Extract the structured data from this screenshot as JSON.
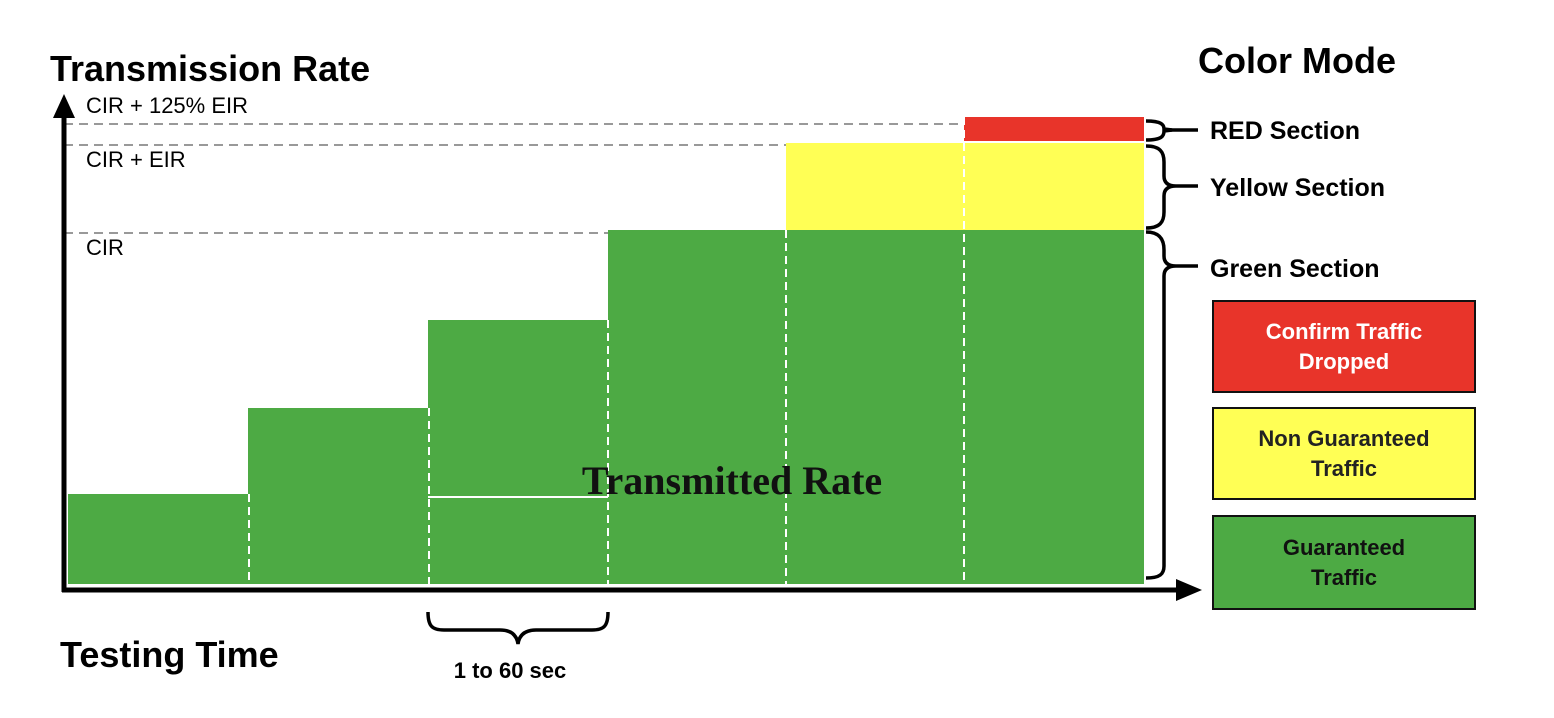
{
  "title": "Transmission Rate",
  "x_axis_title": "Testing Time",
  "right_title": "Color Mode",
  "levels": {
    "cir_125_eir": "CIR + 125% EIR",
    "cir_eir": "CIR + EIR",
    "cir": "CIR"
  },
  "center_label": "Transmitted Rate",
  "step_duration_label": "1 to 60 sec",
  "sections": {
    "red": "RED Section",
    "yellow": "Yellow Section",
    "green": "Green Section"
  },
  "legend": {
    "red": "Confirm Traffic\nDropped",
    "yellow": "Non Guaranteed\nTraffic",
    "green": "Guaranteed\nTraffic"
  },
  "colors": {
    "green": "#4daa44",
    "yellow": "#ffff55",
    "red": "#e8342a",
    "axis": "#000000"
  }
}
